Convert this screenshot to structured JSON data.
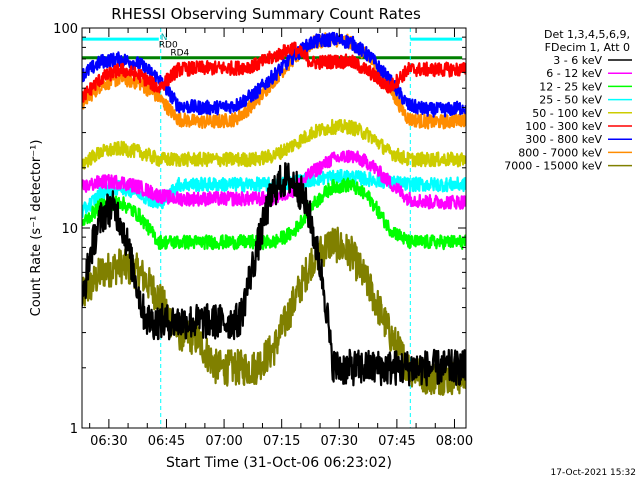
{
  "chart_data": {
    "type": "line",
    "title": "RHESSI Observing Summary Count Rates",
    "xlabel": "Start Time (31-Oct-06 06:23:02)",
    "ylabel": "Count Rate (s⁻¹ detector⁻¹)",
    "yscale": "log",
    "ylim": [
      1,
      100
    ],
    "xlim_minutes": [
      383,
      483
    ],
    "x_ticks": [
      {
        "label": "06:30",
        "minute": 390
      },
      {
        "label": "06:45",
        "minute": 405
      },
      {
        "label": "07:00",
        "minute": 420
      },
      {
        "label": "07:15",
        "minute": 435
      },
      {
        "label": "07:30",
        "minute": 450
      },
      {
        "label": "07:45",
        "minute": 465
      },
      {
        "label": "08:00",
        "minute": 480
      }
    ],
    "y_ticks": [
      {
        "label": "1",
        "value": 1
      },
      {
        "label": "10",
        "value": 10
      },
      {
        "label": "100",
        "value": 100
      }
    ],
    "legend": {
      "placement": "top-right",
      "header": [
        "Det 1,3,4,5,6,9,",
        "FDecim 1, Att 0"
      ]
    },
    "annotations": [
      {
        "text": "RD0",
        "minute": 403,
        "value": 80
      },
      {
        "text": "RD4",
        "minute": 406,
        "value": 73
      },
      {
        "text": "N",
        "minute": 403.5,
        "value": 87
      }
    ],
    "state_bars": [
      {
        "name": "night",
        "color": "#00ffff",
        "value": 88,
        "segments": [
          [
            383,
            403
          ],
          [
            468.5,
            482
          ]
        ]
      },
      {
        "name": "decimation",
        "color": "#008000",
        "value": 71,
        "segments": [
          [
            383,
            482
          ]
        ]
      }
    ],
    "dashed_lines": [
      403.5,
      468.5
    ],
    "series": [
      {
        "name": "3 - 6 keV",
        "color": "#000000",
        "x": [
          383,
          384,
          385,
          386,
          387,
          388,
          389,
          390,
          391,
          392,
          393,
          394,
          395,
          396,
          397,
          398,
          399,
          400,
          401,
          402,
          403,
          404,
          405,
          406,
          407,
          408,
          409,
          410,
          411,
          412,
          413,
          414,
          415,
          416,
          417,
          418,
          419,
          420,
          421,
          422,
          423,
          424,
          425,
          426,
          427,
          428,
          429,
          430,
          431,
          432,
          433,
          434,
          435,
          436,
          437,
          438,
          439,
          440,
          441,
          442,
          443,
          444,
          445,
          446,
          447,
          448,
          449,
          450,
          451,
          452,
          453,
          454,
          455,
          456,
          457,
          458,
          459,
          460,
          461,
          462,
          463,
          464,
          465,
          466,
          467,
          468,
          469,
          470,
          471,
          472,
          473,
          474,
          475,
          476,
          477,
          478,
          479,
          480,
          481,
          482
        ],
        "values": [
          4.2,
          5.5,
          7.2,
          8.5,
          10,
          11.2,
          12,
          12.5,
          12.5,
          12,
          11,
          9.5,
          8,
          6.5,
          5.5,
          4.5,
          3.8,
          3.5,
          3.4,
          3.4,
          3.4,
          3.4,
          3.4,
          3.4,
          3.4,
          3.4,
          3.4,
          3.4,
          3.4,
          3.4,
          3.4,
          3.4,
          3.4,
          3.4,
          3.4,
          3.4,
          3.4,
          3.4,
          3.4,
          3.4,
          3.4,
          3.5,
          4,
          5,
          6,
          7,
          8.5,
          10,
          12,
          14,
          15.5,
          16.5,
          17,
          17.5,
          17.5,
          17,
          16,
          15,
          13.5,
          12,
          10,
          8,
          6.5,
          5,
          3.5,
          2.2,
          2,
          2,
          2,
          2,
          2,
          2,
          2,
          2,
          2,
          2,
          2,
          2,
          2,
          2,
          2,
          2,
          2,
          2,
          2,
          2,
          2,
          2,
          2,
          2,
          2,
          2,
          2,
          2,
          2,
          2,
          2,
          2,
          2,
          2
        ]
      },
      {
        "name": "6 - 12 keV",
        "color": "#ff00ff",
        "x": [
          383,
          388,
          393,
          398,
          403,
          408,
          413,
          418,
          423,
          428,
          433,
          438,
          443,
          448,
          453,
          458,
          463,
          468,
          473,
          478,
          482
        ],
        "values": [
          16,
          17,
          17,
          16,
          14.5,
          14,
          14,
          14,
          14,
          14,
          14,
          15.5,
          19,
          22,
          23,
          21,
          17,
          14,
          13.5,
          13.5,
          13.5
        ]
      },
      {
        "name": "12 - 25 keV",
        "color": "#00ff00",
        "x": [
          383,
          388,
          393,
          398,
          403,
          408,
          413,
          418,
          423,
          428,
          433,
          438,
          443,
          448,
          453,
          458,
          463,
          468,
          473,
          478,
          482
        ],
        "values": [
          10.5,
          13,
          13.5,
          11.5,
          8.5,
          8.5,
          8.5,
          8.5,
          8.5,
          8.5,
          8.5,
          9.5,
          13,
          16,
          16.5,
          14,
          10,
          8.5,
          8.5,
          8.5,
          8.5
        ]
      },
      {
        "name": "25 - 50 keV",
        "color": "#00ffff",
        "x": [
          383,
          388,
          393,
          398,
          403,
          408,
          413,
          418,
          423,
          428,
          433,
          438,
          443,
          448,
          453,
          458,
          463,
          468,
          473,
          478,
          482
        ],
        "values": [
          12,
          15,
          16,
          15,
          13,
          16.5,
          16.5,
          16.5,
          16.5,
          16.5,
          16.5,
          17,
          17.5,
          18,
          18,
          17.5,
          17,
          16.5,
          16.5,
          16.5,
          16.5
        ]
      },
      {
        "name": "50 - 100 keV",
        "color": "#cccc00",
        "x": [
          383,
          388,
          393,
          398,
          403,
          408,
          413,
          418,
          423,
          428,
          433,
          438,
          443,
          448,
          453,
          458,
          463,
          468,
          473,
          478,
          482
        ],
        "values": [
          21,
          24,
          25,
          24,
          22,
          22,
          22,
          22,
          22,
          22,
          23,
          26,
          30,
          32,
          32,
          29,
          24,
          22,
          22,
          22,
          22
        ]
      },
      {
        "name": "100 - 300 keV",
        "color": "#ff0000",
        "x": [
          383,
          388,
          393,
          398,
          403,
          408,
          413,
          418,
          423,
          428,
          433,
          438,
          443,
          448,
          453,
          458,
          463,
          468,
          473,
          478,
          482
        ],
        "values": [
          45,
          56,
          62,
          58,
          50,
          62,
          63,
          63,
          63,
          65,
          72,
          80,
          67,
          68,
          68,
          60,
          50,
          62,
          62,
          62,
          62
        ]
      },
      {
        "name": "300 - 800 keV",
        "color": "#0000ff",
        "x": [
          383,
          388,
          393,
          398,
          403,
          408,
          413,
          418,
          423,
          428,
          433,
          438,
          443,
          448,
          453,
          458,
          463,
          468,
          473,
          478,
          482
        ],
        "values": [
          58,
          68,
          70,
          66,
          56,
          41,
          40,
          40,
          41,
          47,
          58,
          72,
          85,
          88,
          85,
          72,
          55,
          41,
          39,
          39,
          40
        ]
      },
      {
        "name": "800 - 7000 keV",
        "color": "#ff8c00",
        "x": [
          383,
          388,
          393,
          398,
          403,
          408,
          413,
          418,
          423,
          428,
          433,
          438,
          443,
          448,
          453,
          458,
          463,
          468,
          473,
          478,
          482
        ],
        "values": [
          42,
          52,
          56,
          53,
          45,
          35,
          34,
          34,
          35,
          42,
          55,
          70,
          84,
          88,
          85,
          70,
          50,
          35,
          34,
          34,
          35
        ]
      },
      {
        "name": "7000 - 15000 keV",
        "color": "#808000",
        "x": [
          383,
          388,
          393,
          398,
          403,
          408,
          413,
          418,
          423,
          428,
          433,
          438,
          443,
          448,
          453,
          458,
          463,
          468,
          473,
          478,
          482
        ],
        "values": [
          4.5,
          6,
          6.5,
          6,
          4.5,
          3,
          2.8,
          2,
          2,
          2,
          2.5,
          4.2,
          7,
          8.5,
          7.5,
          5,
          3,
          2,
          1.8,
          1.8,
          1.8
        ]
      }
    ]
  },
  "footer": {
    "timestamp": "17-Oct-2021 15:32"
  }
}
